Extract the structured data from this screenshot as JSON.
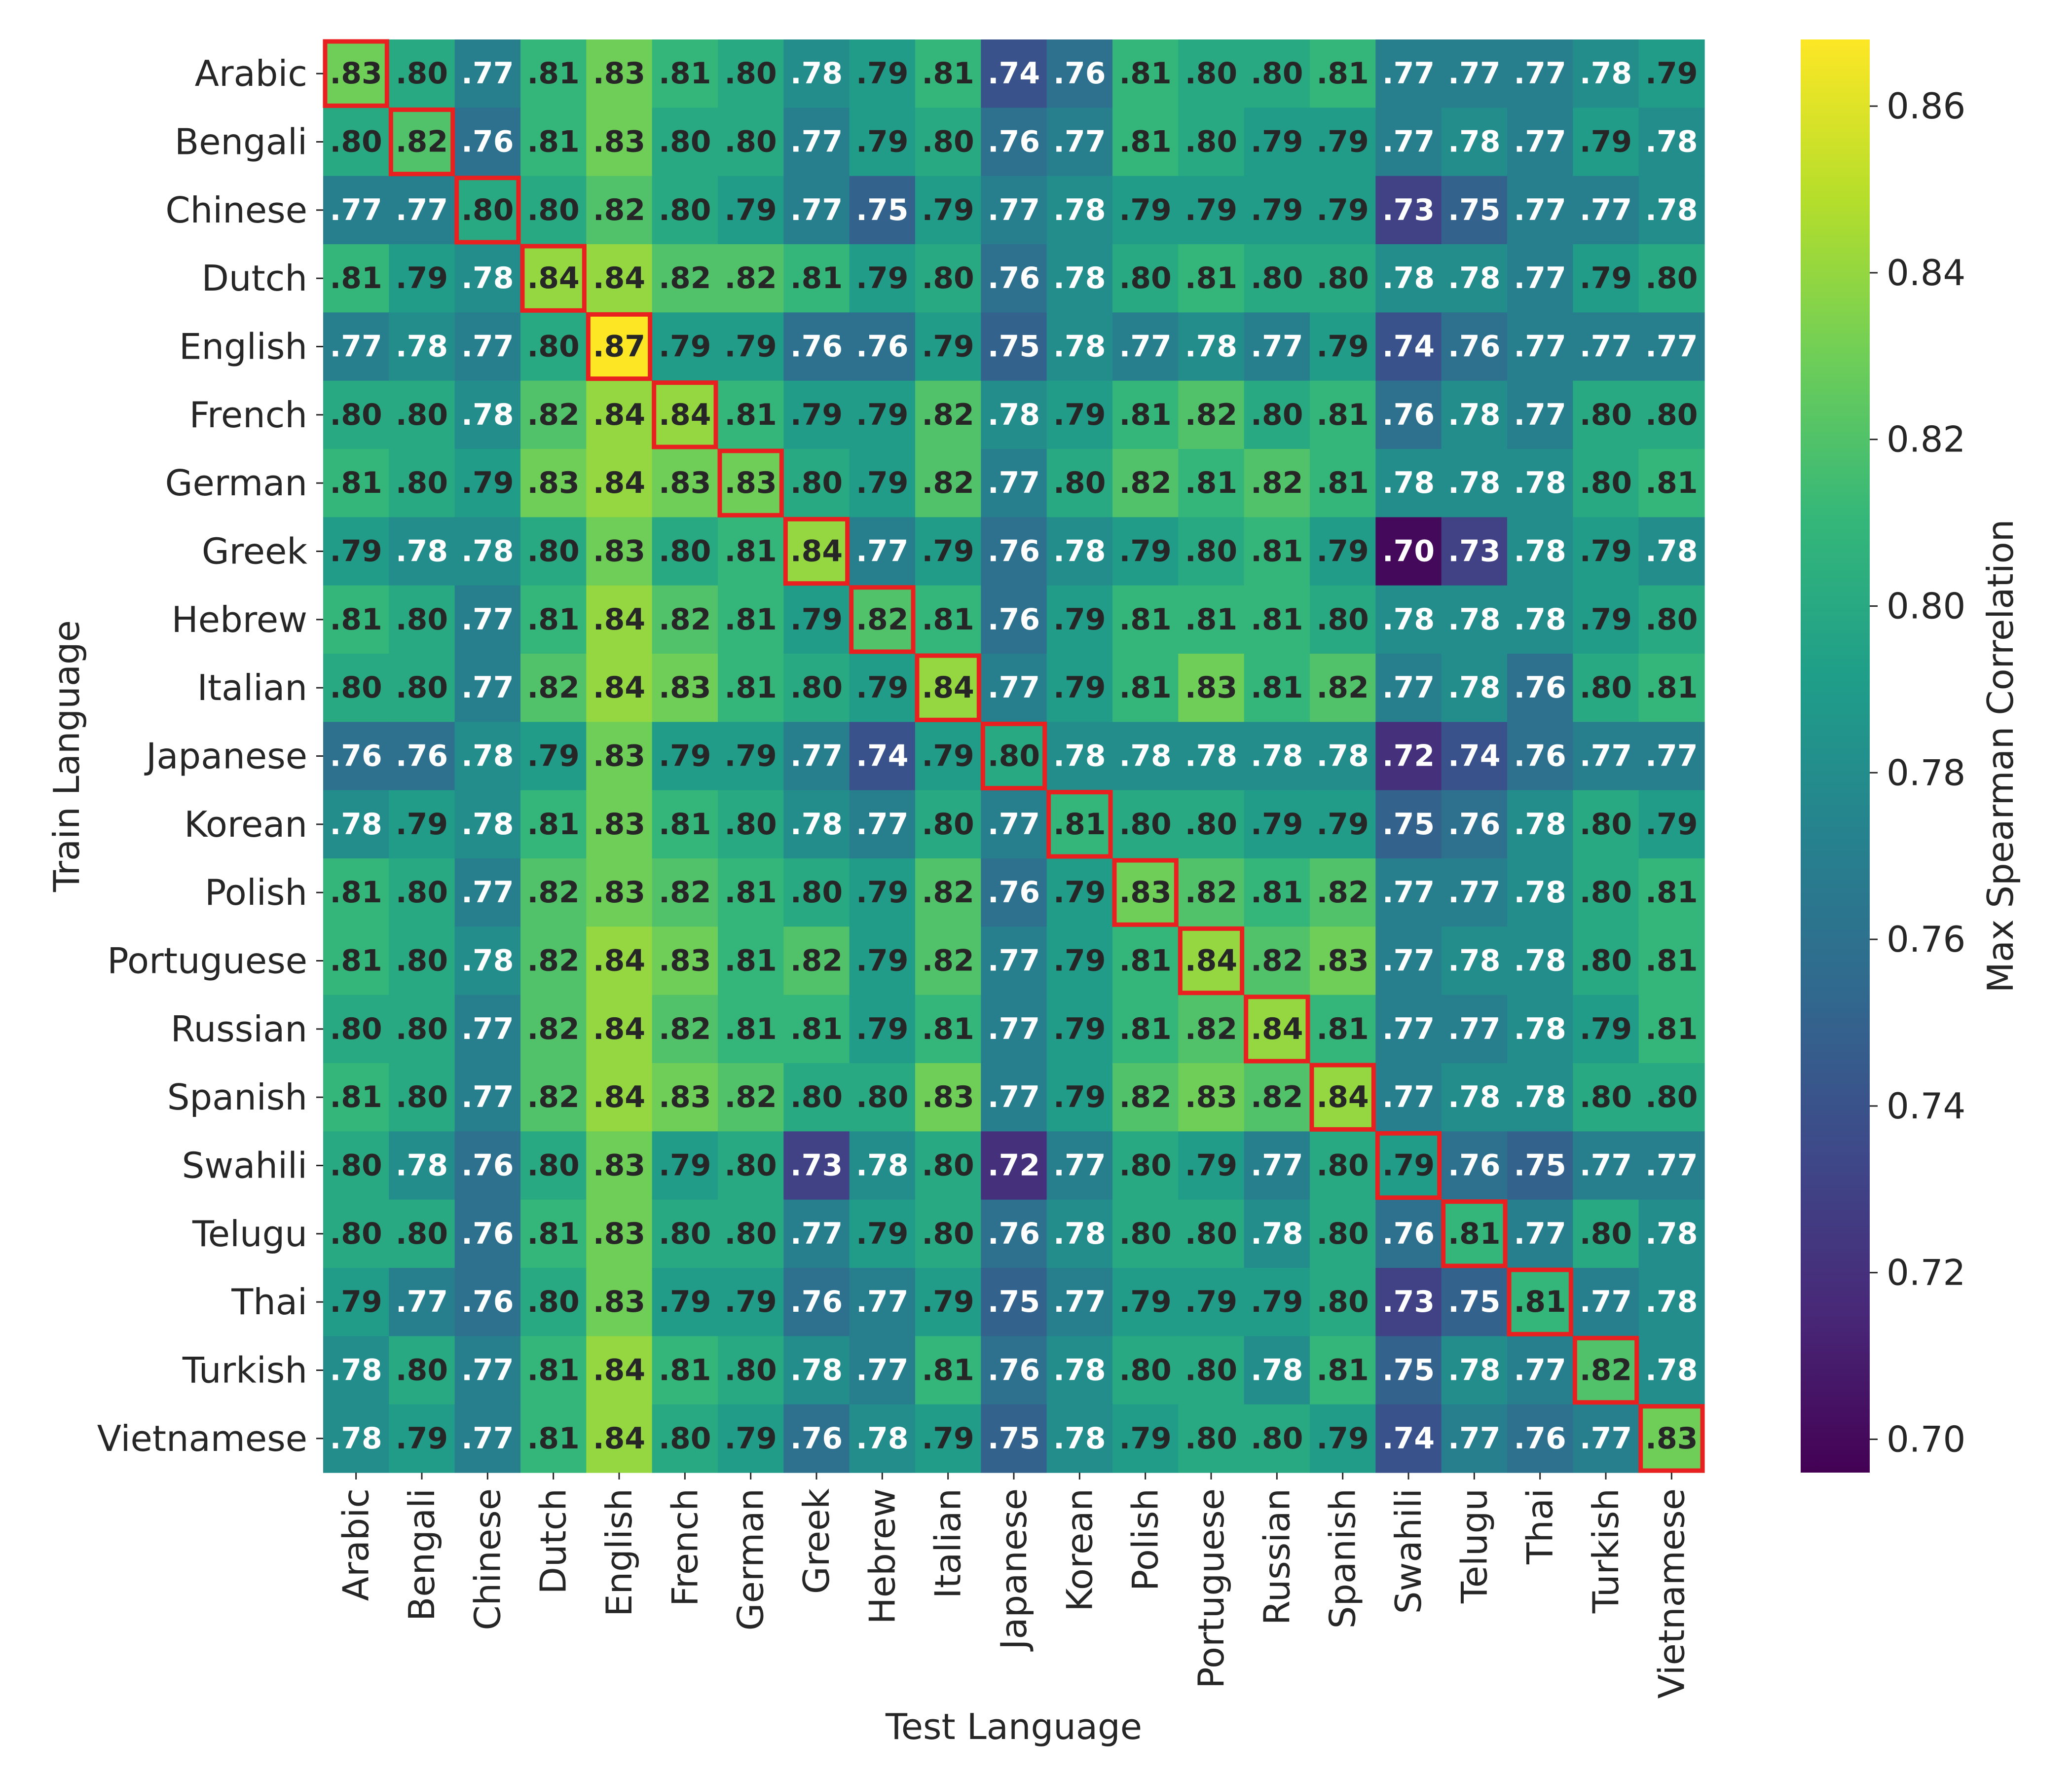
{
  "chart_data": {
    "type": "heatmap",
    "title": "",
    "xlabel": "Test Language",
    "ylabel": "Train Language",
    "colorbar_label": "Max Spearman Correlation",
    "colormap": "viridis",
    "vmin": 0.696,
    "vmax": 0.868,
    "colorbar_ticks": [
      0.7,
      0.72,
      0.74,
      0.76,
      0.78,
      0.8,
      0.82,
      0.84,
      0.86
    ],
    "colorbar_tick_labels": [
      "0.70",
      "0.72",
      "0.74",
      "0.76",
      "0.78",
      "0.80",
      "0.82",
      "0.84",
      "0.86"
    ],
    "highlight_diagonal": true,
    "highlight_color": "#e8201f",
    "x_categories": [
      "Arabic",
      "Bengali",
      "Chinese",
      "Dutch",
      "English",
      "French",
      "German",
      "Greek",
      "Hebrew",
      "Italian",
      "Japanese",
      "Korean",
      "Polish",
      "Portuguese",
      "Russian",
      "Spanish",
      "Swahili",
      "Telugu",
      "Thai",
      "Turkish",
      "Vietnamese"
    ],
    "y_categories": [
      "Arabic",
      "Bengali",
      "Chinese",
      "Dutch",
      "English",
      "French",
      "German",
      "Greek",
      "Hebrew",
      "Italian",
      "Japanese",
      "Korean",
      "Polish",
      "Portuguese",
      "Russian",
      "Spanish",
      "Swahili",
      "Telugu",
      "Thai",
      "Turkish",
      "Vietnamese"
    ],
    "values": [
      [
        0.83,
        0.8,
        0.77,
        0.81,
        0.83,
        0.81,
        0.8,
        0.78,
        0.79,
        0.81,
        0.74,
        0.76,
        0.81,
        0.8,
        0.8,
        0.81,
        0.77,
        0.77,
        0.77,
        0.78,
        0.79
      ],
      [
        0.8,
        0.82,
        0.76,
        0.81,
        0.83,
        0.8,
        0.8,
        0.77,
        0.79,
        0.8,
        0.76,
        0.77,
        0.81,
        0.8,
        0.79,
        0.79,
        0.77,
        0.78,
        0.77,
        0.79,
        0.78
      ],
      [
        0.77,
        0.77,
        0.8,
        0.8,
        0.82,
        0.8,
        0.79,
        0.77,
        0.75,
        0.79,
        0.77,
        0.78,
        0.79,
        0.79,
        0.79,
        0.79,
        0.73,
        0.75,
        0.77,
        0.77,
        0.78
      ],
      [
        0.81,
        0.79,
        0.78,
        0.84,
        0.84,
        0.82,
        0.82,
        0.81,
        0.79,
        0.8,
        0.76,
        0.78,
        0.8,
        0.81,
        0.8,
        0.8,
        0.78,
        0.78,
        0.77,
        0.79,
        0.8
      ],
      [
        0.77,
        0.78,
        0.77,
        0.8,
        0.87,
        0.79,
        0.79,
        0.76,
        0.76,
        0.79,
        0.75,
        0.78,
        0.77,
        0.78,
        0.77,
        0.79,
        0.74,
        0.76,
        0.77,
        0.77,
        0.77
      ],
      [
        0.8,
        0.8,
        0.78,
        0.82,
        0.84,
        0.84,
        0.81,
        0.79,
        0.79,
        0.82,
        0.78,
        0.79,
        0.81,
        0.82,
        0.8,
        0.81,
        0.76,
        0.78,
        0.77,
        0.8,
        0.8
      ],
      [
        0.81,
        0.8,
        0.79,
        0.83,
        0.84,
        0.83,
        0.83,
        0.8,
        0.79,
        0.82,
        0.77,
        0.8,
        0.82,
        0.81,
        0.82,
        0.81,
        0.78,
        0.78,
        0.78,
        0.8,
        0.81
      ],
      [
        0.79,
        0.78,
        0.78,
        0.8,
        0.83,
        0.8,
        0.81,
        0.84,
        0.77,
        0.79,
        0.76,
        0.78,
        0.79,
        0.8,
        0.81,
        0.79,
        0.7,
        0.73,
        0.78,
        0.79,
        0.78
      ],
      [
        0.81,
        0.8,
        0.77,
        0.81,
        0.84,
        0.82,
        0.81,
        0.79,
        0.82,
        0.81,
        0.76,
        0.79,
        0.81,
        0.81,
        0.81,
        0.8,
        0.78,
        0.78,
        0.78,
        0.79,
        0.8
      ],
      [
        0.8,
        0.8,
        0.77,
        0.82,
        0.84,
        0.83,
        0.81,
        0.8,
        0.79,
        0.84,
        0.77,
        0.79,
        0.81,
        0.83,
        0.81,
        0.82,
        0.77,
        0.78,
        0.76,
        0.8,
        0.81
      ],
      [
        0.76,
        0.76,
        0.78,
        0.79,
        0.83,
        0.79,
        0.79,
        0.77,
        0.74,
        0.79,
        0.8,
        0.78,
        0.78,
        0.78,
        0.78,
        0.78,
        0.72,
        0.74,
        0.76,
        0.77,
        0.77
      ],
      [
        0.78,
        0.79,
        0.78,
        0.81,
        0.83,
        0.81,
        0.8,
        0.78,
        0.77,
        0.8,
        0.77,
        0.81,
        0.8,
        0.8,
        0.79,
        0.79,
        0.75,
        0.76,
        0.78,
        0.8,
        0.79
      ],
      [
        0.81,
        0.8,
        0.77,
        0.82,
        0.83,
        0.82,
        0.81,
        0.8,
        0.79,
        0.82,
        0.76,
        0.79,
        0.83,
        0.82,
        0.81,
        0.82,
        0.77,
        0.77,
        0.78,
        0.8,
        0.81
      ],
      [
        0.81,
        0.8,
        0.78,
        0.82,
        0.84,
        0.83,
        0.81,
        0.82,
        0.79,
        0.82,
        0.77,
        0.79,
        0.81,
        0.84,
        0.82,
        0.83,
        0.77,
        0.78,
        0.78,
        0.8,
        0.81
      ],
      [
        0.8,
        0.8,
        0.77,
        0.82,
        0.84,
        0.82,
        0.81,
        0.81,
        0.79,
        0.81,
        0.77,
        0.79,
        0.81,
        0.82,
        0.84,
        0.81,
        0.77,
        0.77,
        0.78,
        0.79,
        0.81
      ],
      [
        0.81,
        0.8,
        0.77,
        0.82,
        0.84,
        0.83,
        0.82,
        0.8,
        0.8,
        0.83,
        0.77,
        0.79,
        0.82,
        0.83,
        0.82,
        0.84,
        0.77,
        0.78,
        0.78,
        0.8,
        0.8
      ],
      [
        0.8,
        0.78,
        0.76,
        0.8,
        0.83,
        0.79,
        0.8,
        0.73,
        0.78,
        0.8,
        0.72,
        0.77,
        0.8,
        0.79,
        0.77,
        0.8,
        0.79,
        0.76,
        0.75,
        0.77,
        0.77
      ],
      [
        0.8,
        0.8,
        0.76,
        0.81,
        0.83,
        0.8,
        0.8,
        0.77,
        0.79,
        0.8,
        0.76,
        0.78,
        0.8,
        0.8,
        0.78,
        0.8,
        0.76,
        0.81,
        0.77,
        0.8,
        0.78
      ],
      [
        0.79,
        0.77,
        0.76,
        0.8,
        0.83,
        0.79,
        0.79,
        0.76,
        0.77,
        0.79,
        0.75,
        0.77,
        0.79,
        0.79,
        0.79,
        0.8,
        0.73,
        0.75,
        0.81,
        0.77,
        0.78
      ],
      [
        0.78,
        0.8,
        0.77,
        0.81,
        0.84,
        0.81,
        0.8,
        0.78,
        0.77,
        0.81,
        0.76,
        0.78,
        0.8,
        0.8,
        0.78,
        0.81,
        0.75,
        0.78,
        0.77,
        0.82,
        0.78
      ],
      [
        0.78,
        0.79,
        0.77,
        0.81,
        0.84,
        0.8,
        0.79,
        0.76,
        0.78,
        0.79,
        0.75,
        0.78,
        0.79,
        0.8,
        0.8,
        0.79,
        0.74,
        0.77,
        0.76,
        0.77,
        0.83
      ]
    ]
  }
}
